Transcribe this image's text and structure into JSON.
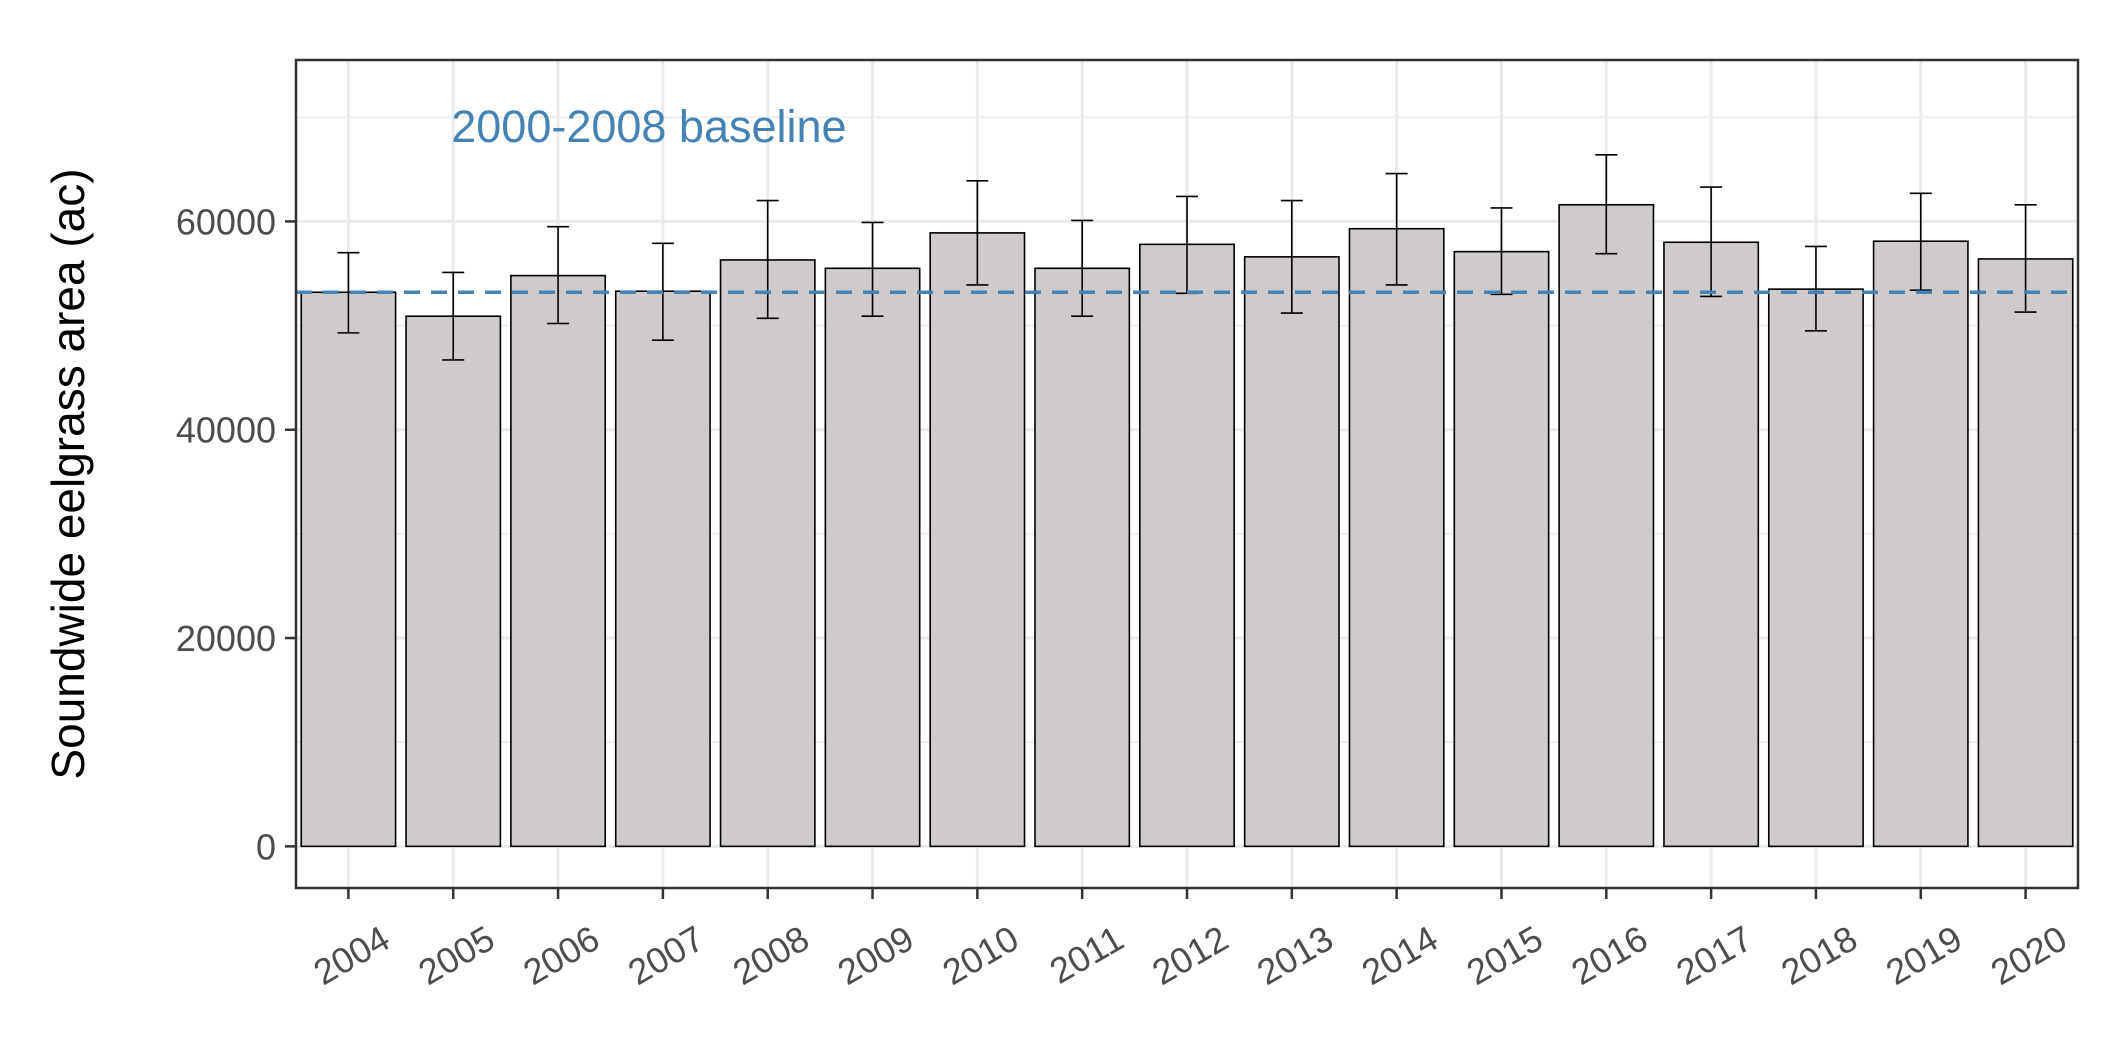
{
  "chart_data": {
    "type": "bar",
    "categories": [
      "2004",
      "2005",
      "2006",
      "2007",
      "2008",
      "2009",
      "2010",
      "2011",
      "2012",
      "2013",
      "2014",
      "2015",
      "2016",
      "2017",
      "2018",
      "2019",
      "2020"
    ],
    "values": [
      53200,
      50900,
      54800,
      53300,
      56300,
      55500,
      58900,
      55500,
      57800,
      56600,
      59300,
      57100,
      61600,
      58000,
      53500,
      58100,
      56400
    ],
    "error_low": [
      49300,
      46700,
      50200,
      48600,
      50700,
      50900,
      53900,
      50900,
      53100,
      51200,
      53900,
      53000,
      56900,
      52800,
      49500,
      53400,
      51300
    ],
    "error_high": [
      57000,
      55100,
      59500,
      57900,
      62000,
      59900,
      63900,
      60100,
      62400,
      62000,
      64600,
      61300,
      66400,
      63300,
      57600,
      62700,
      61600
    ],
    "baseline": {
      "value": 53200,
      "label": "2000-2008 baseline",
      "color": "#4682b4",
      "style": "dashed"
    },
    "ylabel": "Soundwide eelgrass area (ac)",
    "xlabel": "",
    "ylim": [
      -4000,
      75500
    ],
    "yticks": [
      0,
      20000,
      40000,
      60000
    ],
    "ytick_labels": [
      "0",
      "20000",
      "40000",
      "60000"
    ],
    "grid": true,
    "bar_fill": "#cfcbcb",
    "bar_stroke": "#000000"
  }
}
